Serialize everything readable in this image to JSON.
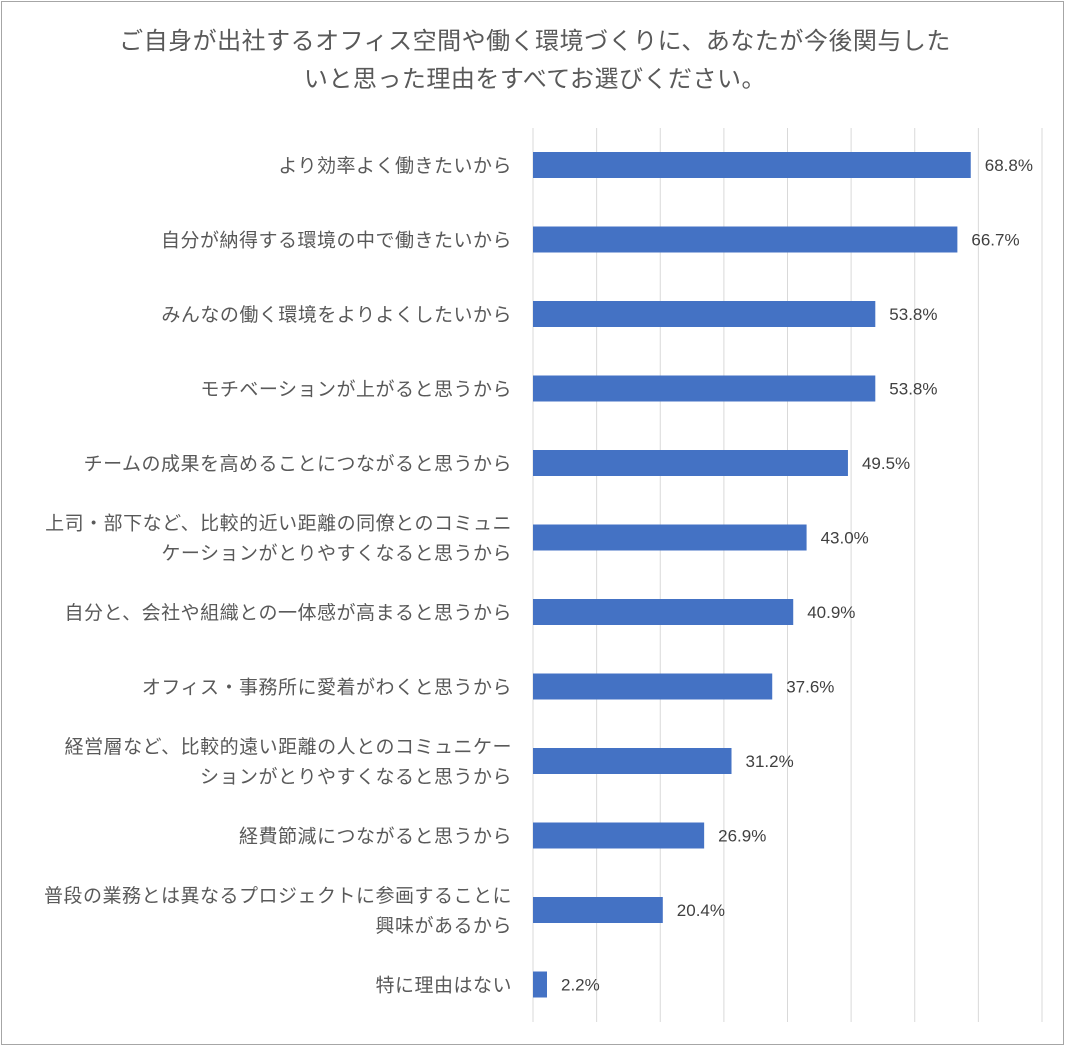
{
  "chart_data": {
    "type": "bar",
    "orientation": "horizontal",
    "title_lines": [
      "ご自身が出社するオフィス空間や働く環境づくりに、あなたが今後関与した",
      "いと思った理由をすべてお選びください。"
    ],
    "categories": [
      [
        "より効率よく働きたいから"
      ],
      [
        "自分が納得する環境の中で働きたいから"
      ],
      [
        "みんなの働く環境をよりよくしたいから"
      ],
      [
        "モチベーションが上がると思うから"
      ],
      [
        "チームの成果を高めることにつながると思うから"
      ],
      [
        "上司・部下など、比較的近い距離の同僚とのコミュニ",
        "ケーションがとりやすくなると思うから"
      ],
      [
        "自分と、会社や組織との一体感が高まると思うから"
      ],
      [
        "オフィス・事務所に愛着がわくと思うから"
      ],
      [
        "経営層など、比較的遠い距離の人とのコミュニケー",
        "ションがとりやすくなると思うから"
      ],
      [
        "経費節減につながると思うから"
      ],
      [
        "普段の業務とは異なるプロジェクトに参画することに",
        "興味があるから"
      ],
      [
        "特に理由はない"
      ]
    ],
    "values": [
      68.8,
      66.7,
      53.8,
      53.8,
      49.5,
      43.0,
      40.9,
      37.6,
      31.2,
      26.9,
      20.4,
      2.2
    ],
    "value_labels": [
      "68.8%",
      "66.7%",
      "53.8%",
      "53.8%",
      "49.5%",
      "43.0%",
      "40.9%",
      "37.6%",
      "31.2%",
      "26.9%",
      "20.4%",
      "2.2%"
    ],
    "xlim": [
      0,
      80
    ],
    "x_gridlines": [
      0,
      10,
      20,
      30,
      40,
      50,
      60,
      70,
      80
    ],
    "grid": true,
    "legend": "none",
    "bar_color": "#4472c4",
    "grid_color": "#d9d9d9",
    "text_color": "#595959",
    "value_label_color": "#404040"
  }
}
